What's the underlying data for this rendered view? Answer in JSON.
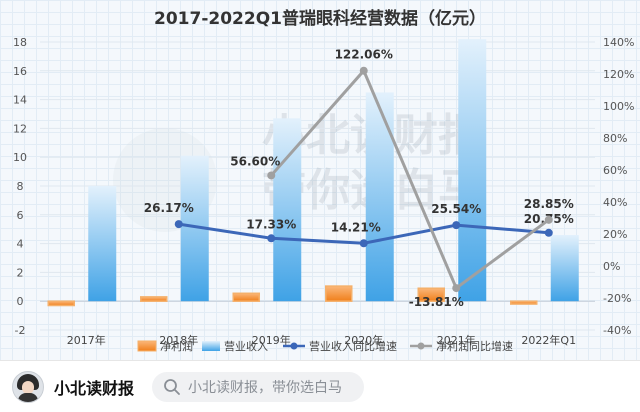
{
  "brand": {
    "name": "小北读财报",
    "search_placeholder": "小北读财报，带你选白马",
    "watermark_line1": "小北读财报",
    "watermark_line2": "带你选白马"
  },
  "colors": {
    "net_profit": "#f07f1a",
    "revenue": "#3fa2e6",
    "revenue_growth": "#3c67b8",
    "profit_growth": "#a0a0a0"
  },
  "chart_data": {
    "type": "bar+line",
    "title": "2017-2022Q1普瑞眼科经营数据（亿元）",
    "categories": [
      "2017年",
      "2018年",
      "2019年",
      "2020年",
      "2021年",
      "2022年Q1"
    ],
    "y_left": {
      "min": -2,
      "max": 18,
      "ticks": [
        "-2",
        "0",
        "2",
        "4",
        "6",
        "8",
        "10",
        "12",
        "14",
        "16",
        "18"
      ]
    },
    "y_right": {
      "min": -40,
      "max": 140,
      "ticks": [
        "-40%",
        "-20%",
        "0%",
        "20%",
        "40%",
        "60%",
        "80%",
        "100%",
        "120%",
        "140%"
      ]
    },
    "grid": true,
    "legend_position": "bottom",
    "series": [
      {
        "name": "净利润",
        "kind": "bar",
        "axis": "left",
        "values": [
          -0.3,
          0.3,
          0.55,
          1.05,
          0.9,
          -0.2
        ]
      },
      {
        "name": "营业收入",
        "kind": "bar",
        "axis": "left",
        "values": [
          8.0,
          10.1,
          12.7,
          14.5,
          18.2,
          4.6
        ]
      },
      {
        "name": "营业收入同比增速",
        "kind": "line",
        "axis": "right",
        "values": [
          null,
          26.17,
          17.33,
          14.21,
          25.54,
          20.75
        ],
        "labels": [
          null,
          "26.17%",
          "17.33%",
          "14.21%",
          "25.54%",
          "20.75%"
        ]
      },
      {
        "name": "净利润同比增速",
        "kind": "line",
        "axis": "right",
        "values": [
          null,
          null,
          56.6,
          122.06,
          -13.81,
          28.85
        ],
        "labels": [
          null,
          null,
          "56.60%",
          "122.06%",
          "-13.81%",
          "28.85%"
        ]
      }
    ]
  }
}
